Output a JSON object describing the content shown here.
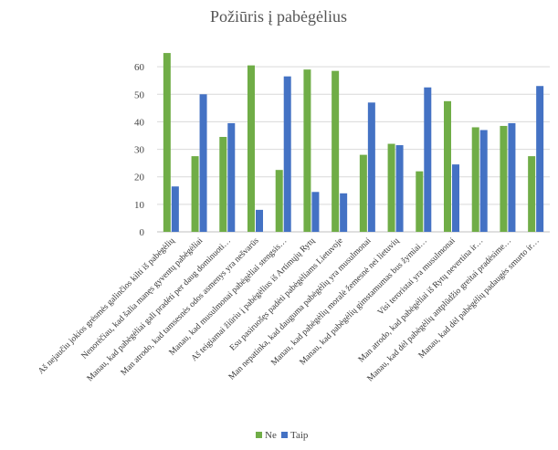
{
  "chart_data": {
    "type": "bar",
    "title": "Požiūris į pabėgėlius",
    "xlabel": "",
    "ylabel": "",
    "ylim": [
      0,
      70
    ],
    "yticks": [
      0,
      10,
      20,
      30,
      40,
      50,
      60
    ],
    "grid": true,
    "legend": "bottom",
    "categories": [
      "Aš nejaučiu jokios grėsmės galinčios kilti iš pabėgėlių",
      "Nenorėčiau, kad šalia manęs gyventų pabėgėliai",
      "Manau, kad pabėgėliai gali pradėti per daug dominuoti…",
      "Man atrodo, kad tamsesnės odos asmenys yra nešvarūs",
      "Manau, kad musulmonai pabėgėliai stengsis…",
      "Aš teigiamai žiūriu į pabėgėlius iš Artimųjų Rytų",
      "Esu pasiruošęs padėti pabėgėliams Lietuvoje",
      "Man nepatinka, kad dauguma pabėgėlių yra musulmonai",
      "Manau, kad pabėgėlių moralė žemesnė nei lietuvių",
      "Manau, kad pabėgėlių gimstamumas bus žymiai…",
      "Visi teroristai yra musulmonai",
      "Man atrodo, kad pabėgėliai iš Rytų nevertina ir…",
      "Manau, kad dėl pabėgėlių antplūdžio greitai pradėsime…",
      "Manau, kad dėl pabėgėlių padaugės smurto ir…"
    ],
    "series": [
      {
        "name": "Ne",
        "color": "#70ad47",
        "values": [
          65,
          27.5,
          34.5,
          60.5,
          22.5,
          59,
          58.5,
          28,
          32,
          22,
          47.5,
          38,
          38.5,
          27.5
        ]
      },
      {
        "name": "Taip",
        "color": "#4472c4",
        "values": [
          16.5,
          50,
          39.5,
          8,
          56.5,
          14.5,
          14,
          47,
          31.5,
          52.5,
          24.5,
          37,
          39.5,
          53
        ]
      }
    ]
  }
}
